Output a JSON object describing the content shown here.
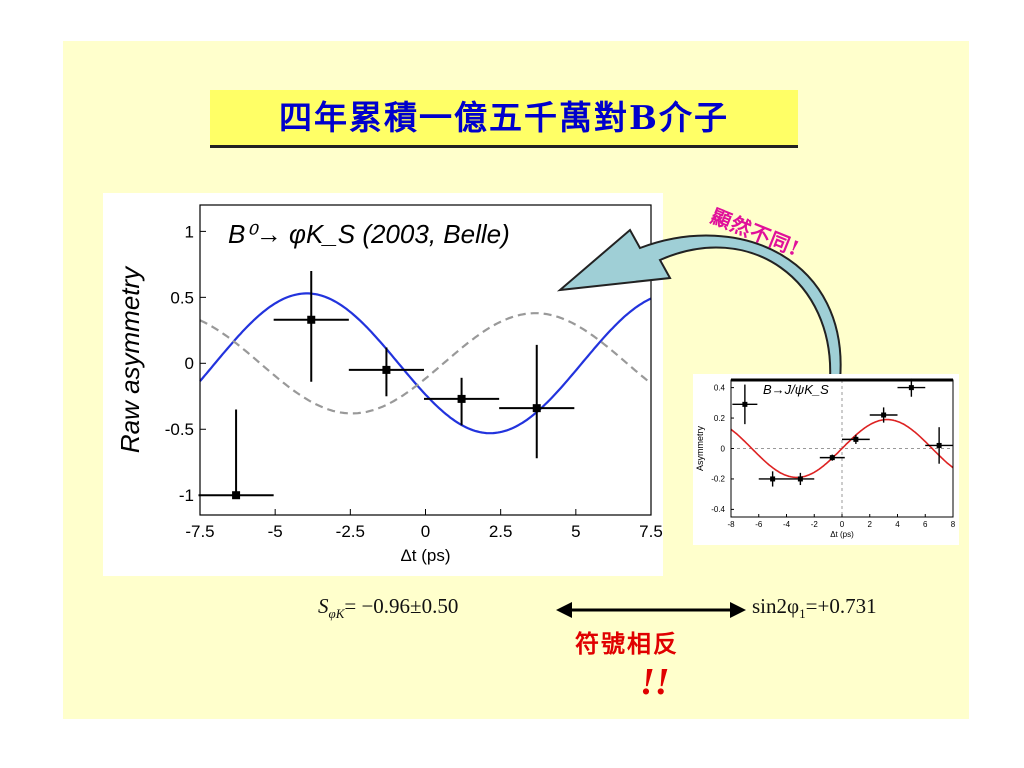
{
  "slide": {
    "title": "四年累積一億五千萬對B介子",
    "annotation_diff": "顯然不同!",
    "equation_left": "S",
    "equation_left_sub": "φK",
    "equation_left_value": "= −0.96±0.50",
    "equation_right": "sin2φ",
    "equation_right_sub": "1",
    "equation_right_value": "=+0.731",
    "opposite_sign": "符號相反",
    "exclaim": "!!"
  },
  "colors": {
    "slide_bg": "#ffffcc",
    "title_bg": "#ffff66",
    "title_text": "#0000cc",
    "fit_curve": "#2233dd",
    "sm_curve": "#999999",
    "inset_fit": "#dd2222",
    "annotation": "#e0109a",
    "opposite": "#e00000",
    "arrow_fill": "#9fcfd6"
  },
  "chart_data": [
    {
      "type": "scatter",
      "title": "B⁰→ φK_S (2003, Belle)",
      "xlabel": "Δt (ps)",
      "ylabel": "Raw asymmetry",
      "xlim": [
        -7.5,
        7.5
      ],
      "ylim": [
        -1.15,
        1.2
      ],
      "xticks": [
        "-7.5",
        "-5",
        "-2.5",
        "0",
        "2.5",
        "5",
        "7.5"
      ],
      "xtick_values": [
        -7.5,
        -5,
        -2.5,
        0,
        2.5,
        5,
        7.5
      ],
      "yticks": [
        "1",
        "0.5",
        "0",
        "-0.5",
        "-1"
      ],
      "ytick_values": [
        1,
        0.5,
        0,
        -0.5,
        -1
      ],
      "points": [
        {
          "x": -6.3,
          "y": -1.0,
          "xerr": 1.25,
          "yerr_up": 0.65,
          "yerr_down": 0.0
        },
        {
          "x": -3.8,
          "y": 0.33,
          "xerr": 1.25,
          "yerr_up": 0.37,
          "yerr_down": 0.47
        },
        {
          "x": -1.3,
          "y": -0.05,
          "xerr": 1.25,
          "yerr_up": 0.17,
          "yerr_down": 0.2
        },
        {
          "x": 1.2,
          "y": -0.27,
          "xerr": 1.25,
          "yerr_up": 0.16,
          "yerr_down": 0.2
        },
        {
          "x": 3.7,
          "y": -0.34,
          "xerr": 1.25,
          "yerr_up": 0.48,
          "yerr_down": 0.38
        }
      ],
      "series": [
        {
          "style": "solid-blue",
          "amplitude": 0.53,
          "period": 12.2,
          "phase_zero_x": -0.9,
          "sign": -1
        },
        {
          "style": "dashed-gray",
          "amplitude": 0.38,
          "period": 12.2,
          "phase_zero_x": 0.6,
          "sign": 1
        }
      ]
    },
    {
      "type": "scatter",
      "title": "B→J/ψK_S",
      "xlabel": "Δt (ps)",
      "ylabel": "Asymmetry",
      "xlim": [
        -8,
        8
      ],
      "ylim": [
        -0.45,
        0.45
      ],
      "xticks": [
        "-8",
        "-6",
        "-4",
        "-2",
        "0",
        "2",
        "4",
        "6",
        "8"
      ],
      "xtick_values": [
        -8,
        -6,
        -4,
        -2,
        0,
        2,
        4,
        6,
        8
      ],
      "yticks": [
        "0.4",
        "0.2",
        "0",
        "-0.2",
        "-0.4"
      ],
      "ytick_values": [
        0.4,
        0.2,
        0,
        -0.2,
        -0.4
      ],
      "points": [
        {
          "x": -7.0,
          "y": 0.29,
          "xerr": 0.9,
          "yerr_up": 0.13,
          "yerr_down": 0.13
        },
        {
          "x": -5.0,
          "y": -0.2,
          "xerr": 1.0,
          "yerr_up": 0.05,
          "yerr_down": 0.05
        },
        {
          "x": -3.0,
          "y": -0.2,
          "xerr": 1.0,
          "yerr_up": 0.04,
          "yerr_down": 0.04
        },
        {
          "x": -0.7,
          "y": -0.06,
          "xerr": 0.9,
          "yerr_up": 0.02,
          "yerr_down": 0.02
        },
        {
          "x": 1.0,
          "y": 0.06,
          "xerr": 1.0,
          "yerr_up": 0.03,
          "yerr_down": 0.03
        },
        {
          "x": 3.0,
          "y": 0.22,
          "xerr": 1.0,
          "yerr_up": 0.05,
          "yerr_down": 0.05
        },
        {
          "x": 5.0,
          "y": 0.4,
          "xerr": 1.0,
          "yerr_up": 0.06,
          "yerr_down": 0.06
        },
        {
          "x": 7.0,
          "y": 0.02,
          "xerr": 1.0,
          "yerr_up": 0.12,
          "yerr_down": 0.12
        }
      ],
      "series": [
        {
          "style": "solid-red",
          "amplitude": 0.19,
          "period": 13.0,
          "phase_zero_x": 0.0,
          "sign": 1
        }
      ]
    }
  ]
}
